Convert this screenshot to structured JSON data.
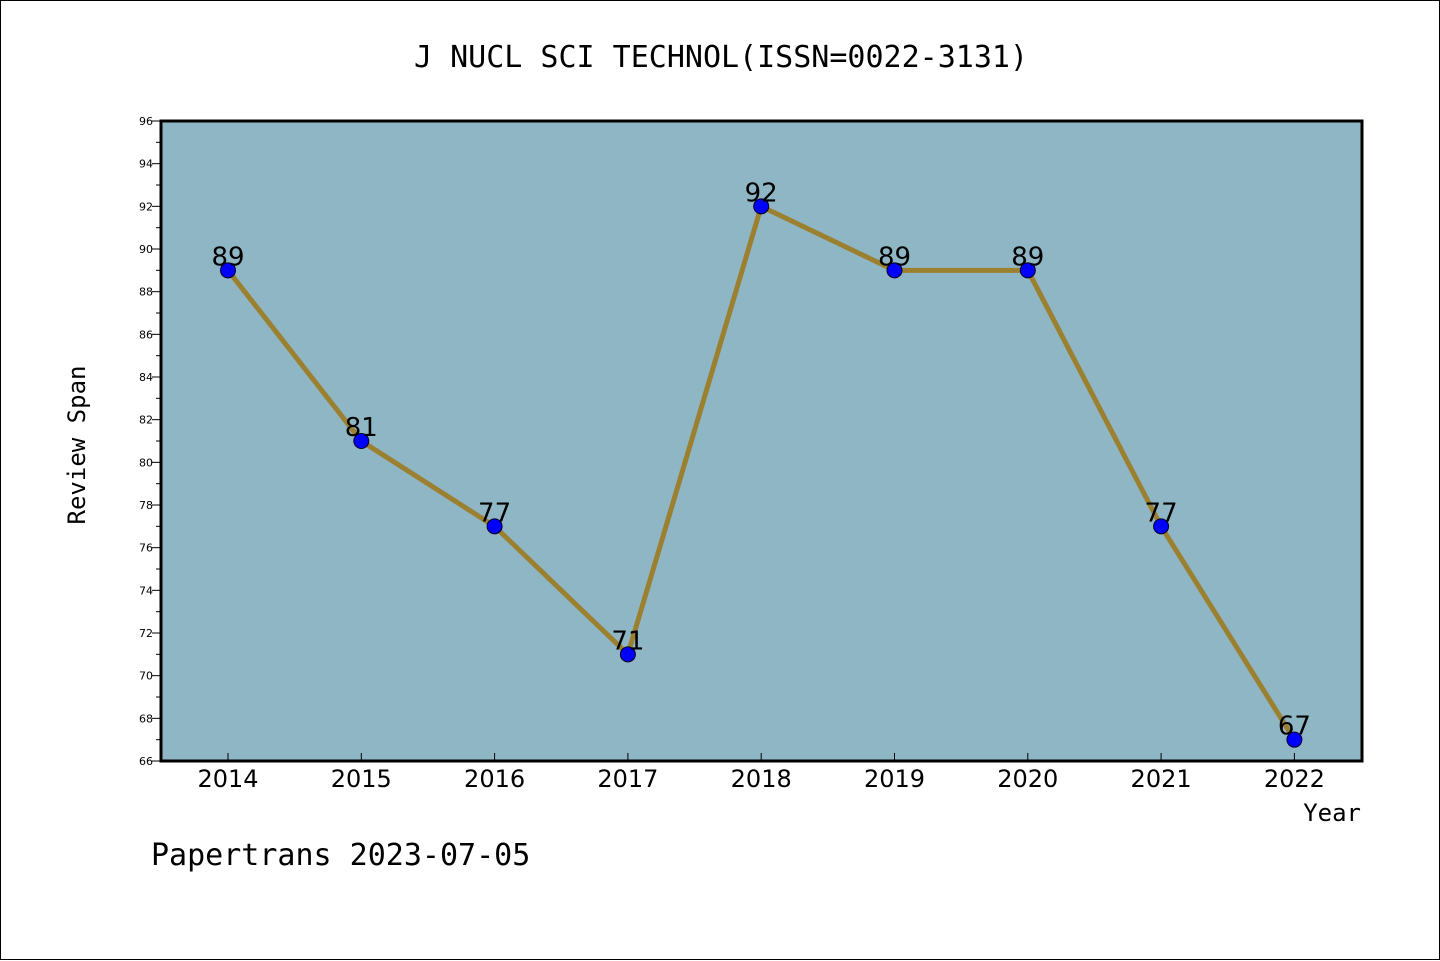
{
  "chart_data": {
    "type": "line",
    "title": "J NUCL SCI TECHNOL(ISSN=0022-3131)",
    "xlabel": "Year",
    "ylabel": "Review Span",
    "categories": [
      "2014",
      "2015",
      "2016",
      "2017",
      "2018",
      "2019",
      "2020",
      "2021",
      "2022"
    ],
    "values": [
      89,
      81,
      77,
      71,
      92,
      89,
      89,
      77,
      67
    ],
    "ylim": [
      66,
      96
    ],
    "ytick_step": 2,
    "grid": false,
    "legend": "none",
    "colors": {
      "plot_background": "#8fb6c5",
      "line": "#9b8030",
      "marker": "#0000ff"
    }
  },
  "footer": {
    "watermark": "Papertrans 2023-07-05"
  }
}
